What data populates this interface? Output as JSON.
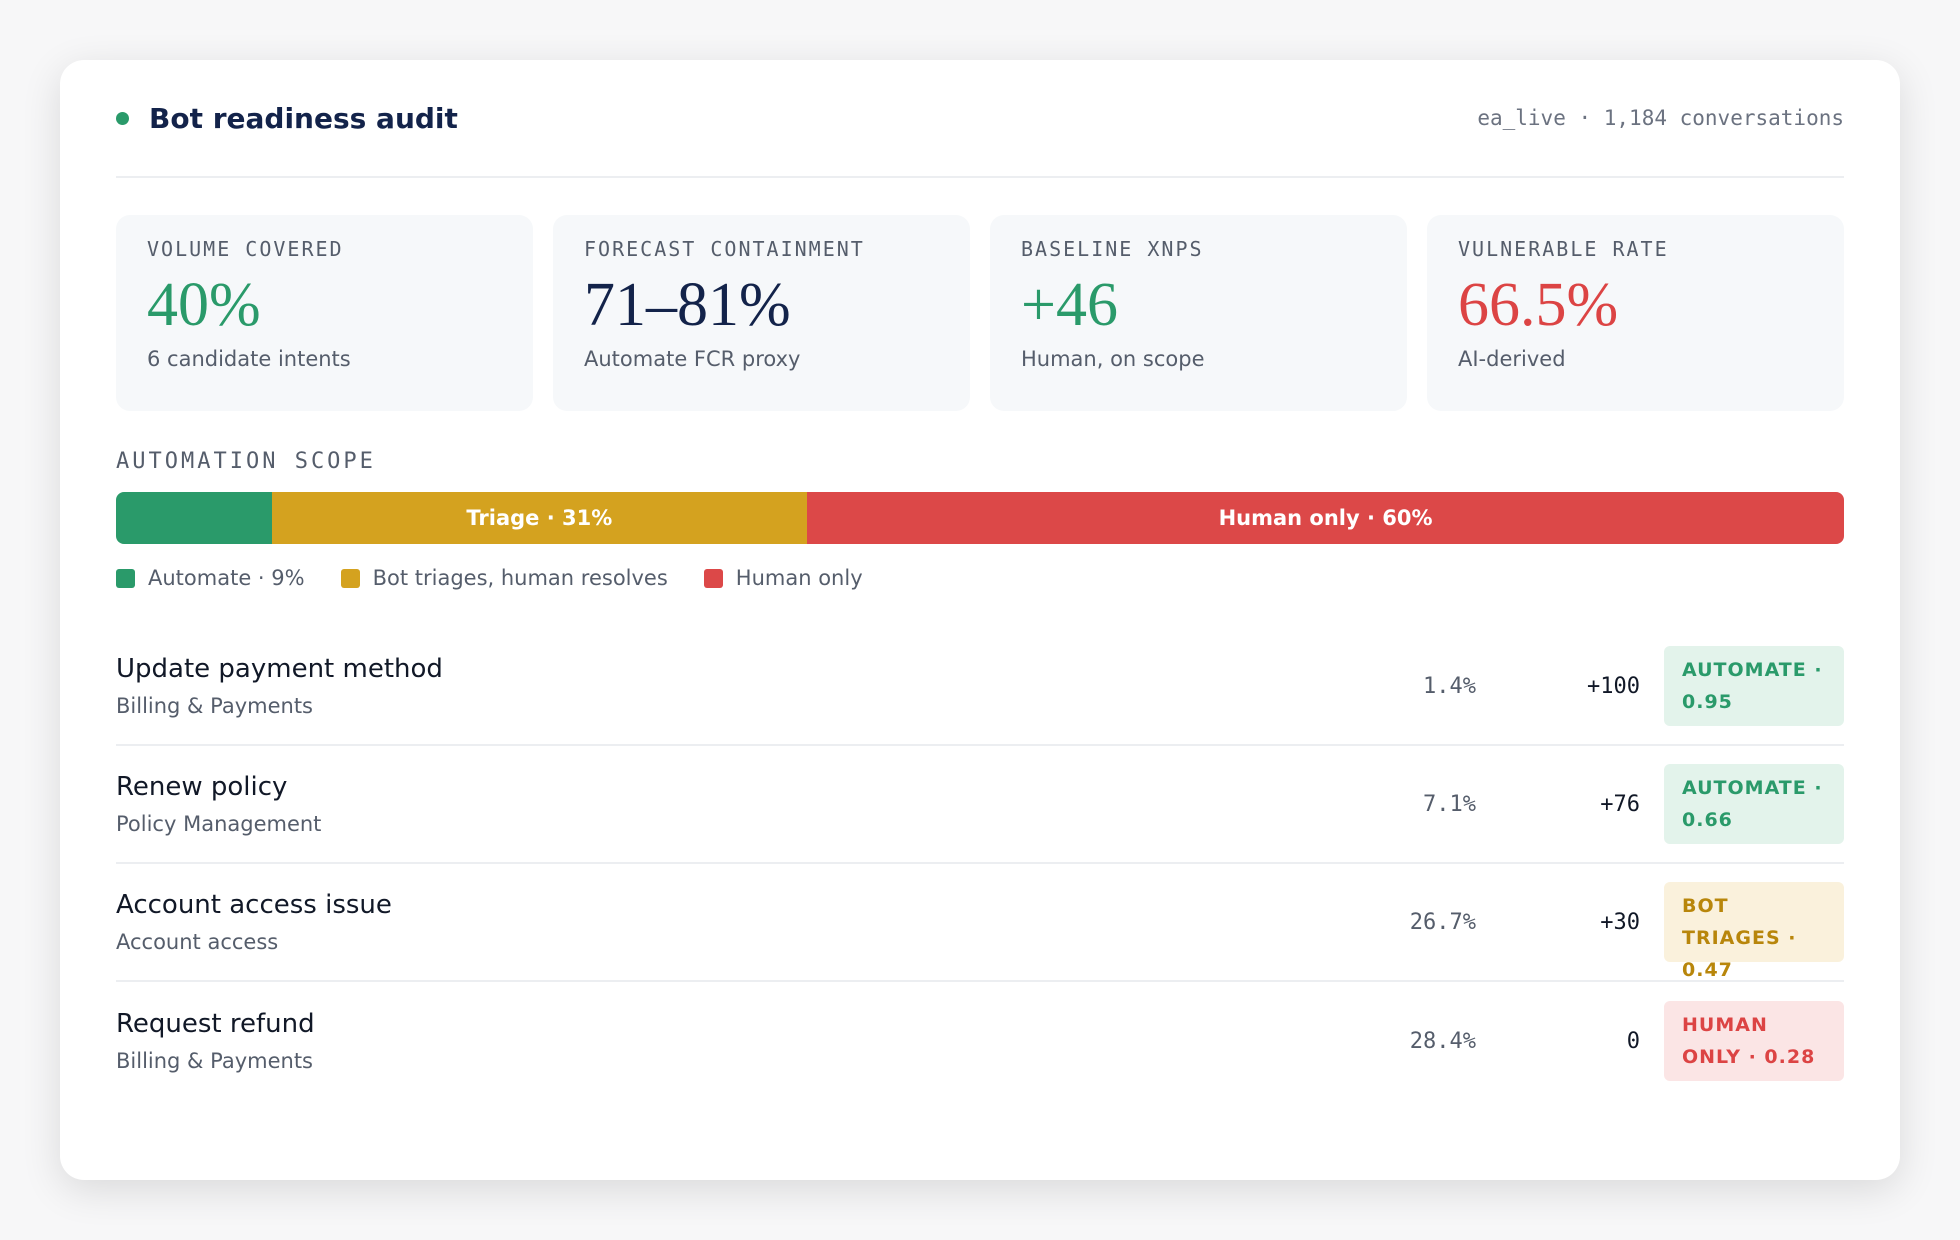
{
  "header": {
    "title": "Bot readiness audit",
    "meta": "ea_live · 1,184 conversations"
  },
  "kpis": [
    {
      "label": "VOLUME COVERED",
      "value": "40%",
      "note": "6 candidate intents",
      "color": "#2a9a6a"
    },
    {
      "label": "FORECAST CONTAINMENT",
      "value": "71–81%",
      "note": "Automate FCR proxy",
      "color": "#13234a"
    },
    {
      "label": "BASELINE XNPS",
      "value": "+46",
      "note": "Human, on scope",
      "color": "#2a9a6a"
    },
    {
      "label": "VULNERABLE RATE",
      "value": "66.5%",
      "note": "AI-derived",
      "color": "#dc4444"
    }
  ],
  "scope": {
    "title": "AUTOMATION SCOPE",
    "segments": [
      {
        "value": 9,
        "color": "#2a9a6a"
      },
      {
        "label": "Triage · 31%",
        "value": 31,
        "color": "#d4a21f"
      },
      {
        "label": "Human only · 60%",
        "value": 60,
        "color": "#dc4848"
      }
    ],
    "legend": [
      "Automate · 9%",
      "Bot triages, human resolves",
      "Human only"
    ]
  },
  "rows": [
    {
      "name": "Update payment method",
      "category": "Billing & Payments",
      "share": "1.4%",
      "xnps": "+100",
      "badge": "AUTOMATE · 0.95",
      "tone": "automate"
    },
    {
      "name": "Renew policy",
      "category": "Policy Management",
      "share": "7.1%",
      "xnps": "+76",
      "badge": "AUTOMATE · 0.66",
      "tone": "automate"
    },
    {
      "name": "Account access issue",
      "category": "Account access",
      "share": "26.7%",
      "xnps": "+30",
      "badge": "BOT TRIAGES · 0.47",
      "tone": "triage"
    },
    {
      "name": "Request refund",
      "category": "Billing & Payments",
      "share": "28.4%",
      "xnps": "0",
      "badge": "HUMAN ONLY · 0.28",
      "tone": "human"
    }
  ]
}
